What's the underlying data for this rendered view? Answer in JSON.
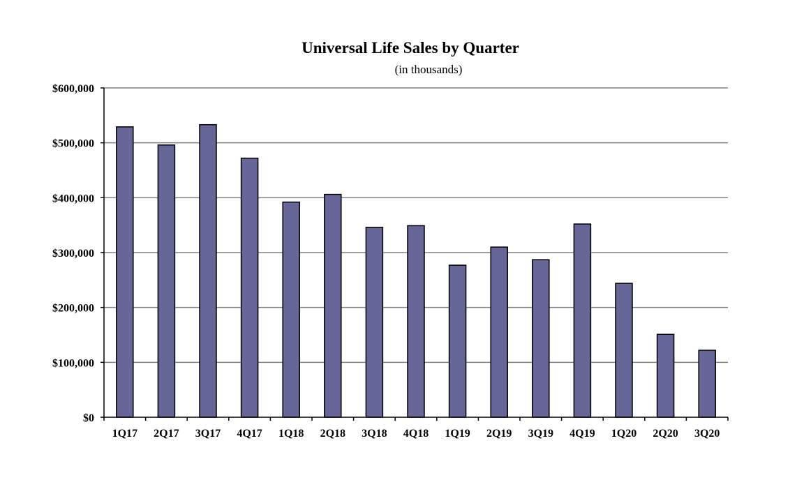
{
  "chart_data": {
    "type": "bar",
    "title": "Universal Life Sales by Quarter",
    "subtitle": "(in thousands)",
    "xlabel": "",
    "ylabel": "",
    "categories": [
      "1Q17",
      "2Q17",
      "3Q17",
      "4Q17",
      "1Q18",
      "2Q18",
      "3Q18",
      "4Q18",
      "1Q19",
      "2Q19",
      "3Q19",
      "4Q19",
      "1Q20",
      "2Q20",
      "3Q20"
    ],
    "values": [
      529000,
      496000,
      533000,
      472000,
      392000,
      406000,
      346000,
      349000,
      277000,
      310000,
      287000,
      352000,
      244000,
      151000,
      122000
    ],
    "ylim": [
      0,
      600000
    ],
    "yticks": [
      0,
      100000,
      200000,
      300000,
      400000,
      500000,
      600000
    ],
    "ytick_labels": [
      "$0",
      "$100,000",
      "$200,000",
      "$300,000",
      "$400,000",
      "$500,000",
      "$600,000"
    ],
    "grid": true,
    "bar_color": "#666699",
    "bar_edge_color": "#000000",
    "grid_color": "#808080"
  }
}
